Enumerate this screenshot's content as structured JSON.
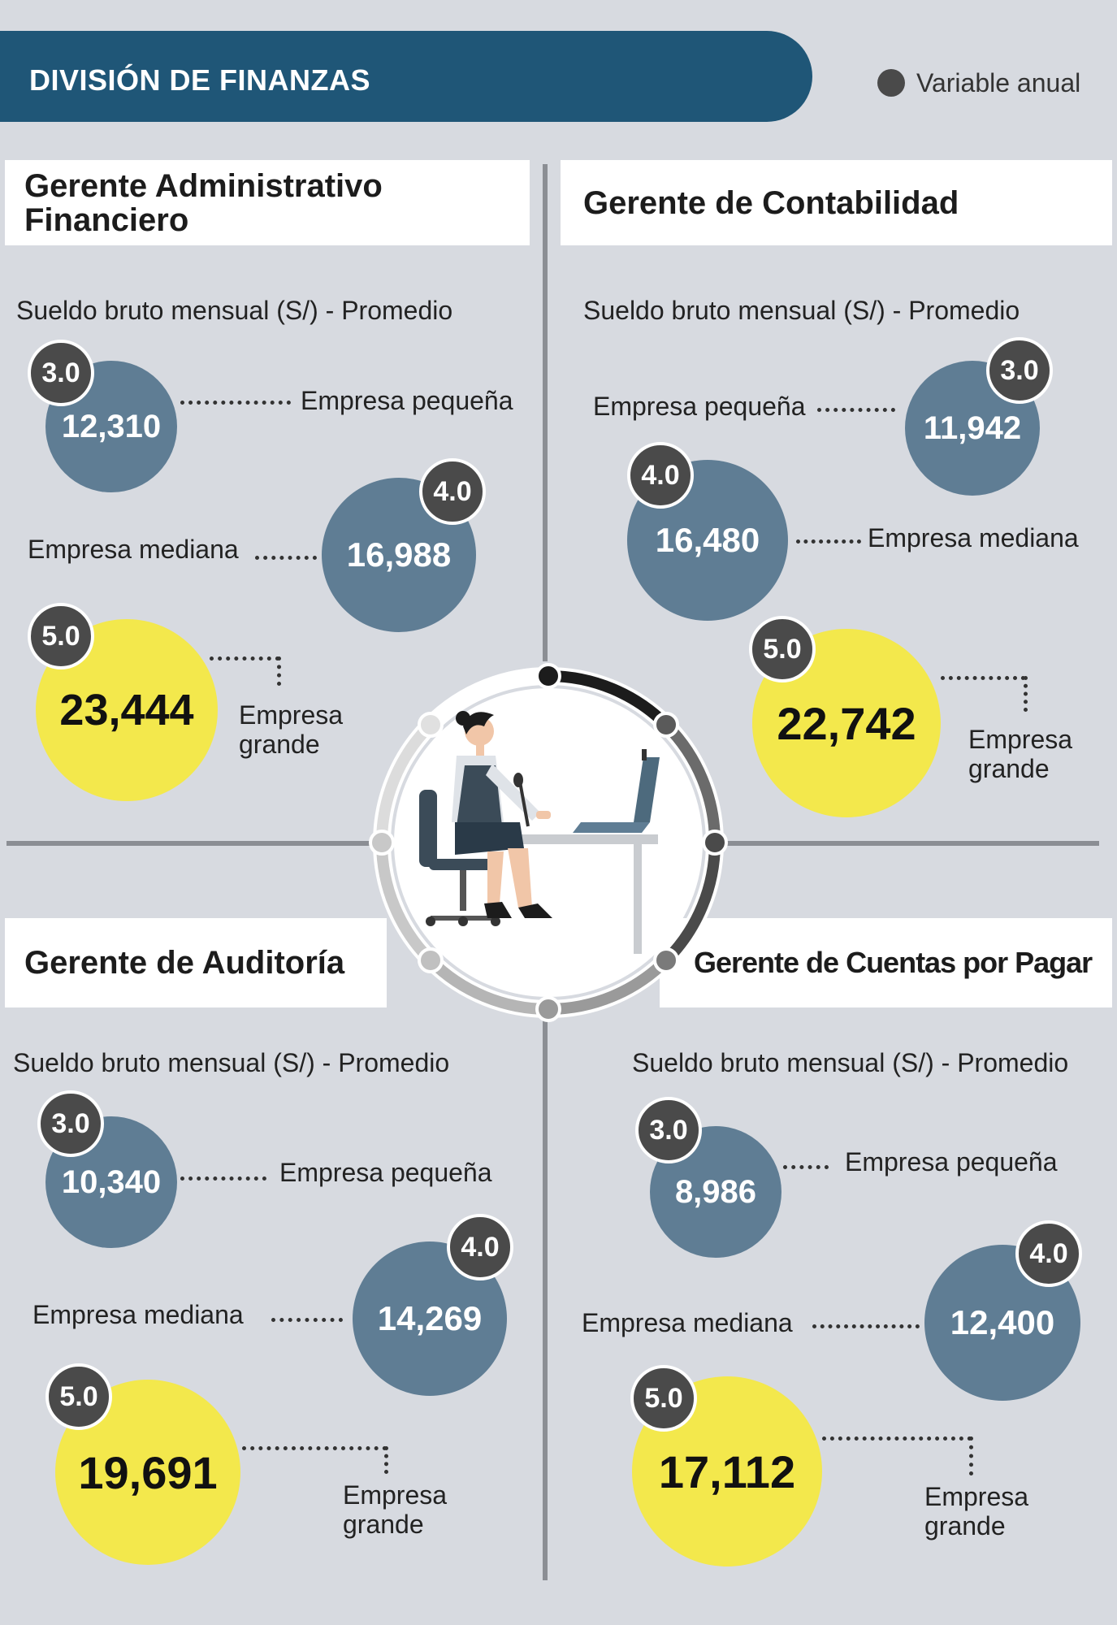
{
  "header": {
    "title": "DIVISIÓN DE FINANZAS",
    "legend_label": "Variable anual",
    "accent_color": "#1f5677"
  },
  "chart_data": [
    {
      "type": "bubble",
      "title": "Gerente Administrativo Financiero",
      "subtitle": "Sueldo bruto mensual (S/) - Promedio",
      "categories": [
        "Empresa pequeña",
        "Empresa mediana",
        "Empresa grande"
      ],
      "values": [
        12310,
        16988,
        23444
      ],
      "value_labels": [
        "12,310",
        "16,988",
        "23,444"
      ],
      "variable_anual": [
        "3.0",
        "4.0",
        "5.0"
      ]
    },
    {
      "type": "bubble",
      "title": "Gerente de Contabilidad",
      "subtitle": "Sueldo bruto mensual (S/)  - Promedio",
      "categories": [
        "Empresa pequeña",
        "Empresa mediana",
        "Empresa grande"
      ],
      "values": [
        11942,
        16480,
        22742
      ],
      "value_labels": [
        "11,942",
        "16,480",
        "22,742"
      ],
      "variable_anual": [
        "3.0",
        "4.0",
        "5.0"
      ]
    },
    {
      "type": "bubble",
      "title": "Gerente de Auditoría",
      "subtitle": "Sueldo bruto mensual (S/) - Promedio",
      "categories": [
        "Empresa pequeña",
        "Empresa mediana",
        "Empresa grande"
      ],
      "values": [
        10340,
        14269,
        19691
      ],
      "value_labels": [
        "10,340",
        "14,269",
        "19,691"
      ],
      "variable_anual": [
        "3.0",
        "4.0",
        "5.0"
      ]
    },
    {
      "type": "bubble",
      "title": "Gerente de Cuentas por Pagar",
      "subtitle": "Sueldo bruto mensual (S/) - Promedio",
      "categories": [
        "Empresa pequeña",
        "Empresa mediana",
        "Empresa grande"
      ],
      "values": [
        8986,
        12400,
        17112
      ],
      "value_labels": [
        "8,986",
        "12,400",
        "17,112"
      ],
      "variable_anual": [
        "3.0",
        "4.0",
        "5.0"
      ]
    }
  ],
  "colors": {
    "small_medium_bubble": "#5f7d94",
    "large_bubble": "#f3e84c",
    "variable_badge": "#4a4a4a",
    "background": "#d7dae0"
  },
  "center_illustration": "woman-at-desk-with-laptop-icon"
}
